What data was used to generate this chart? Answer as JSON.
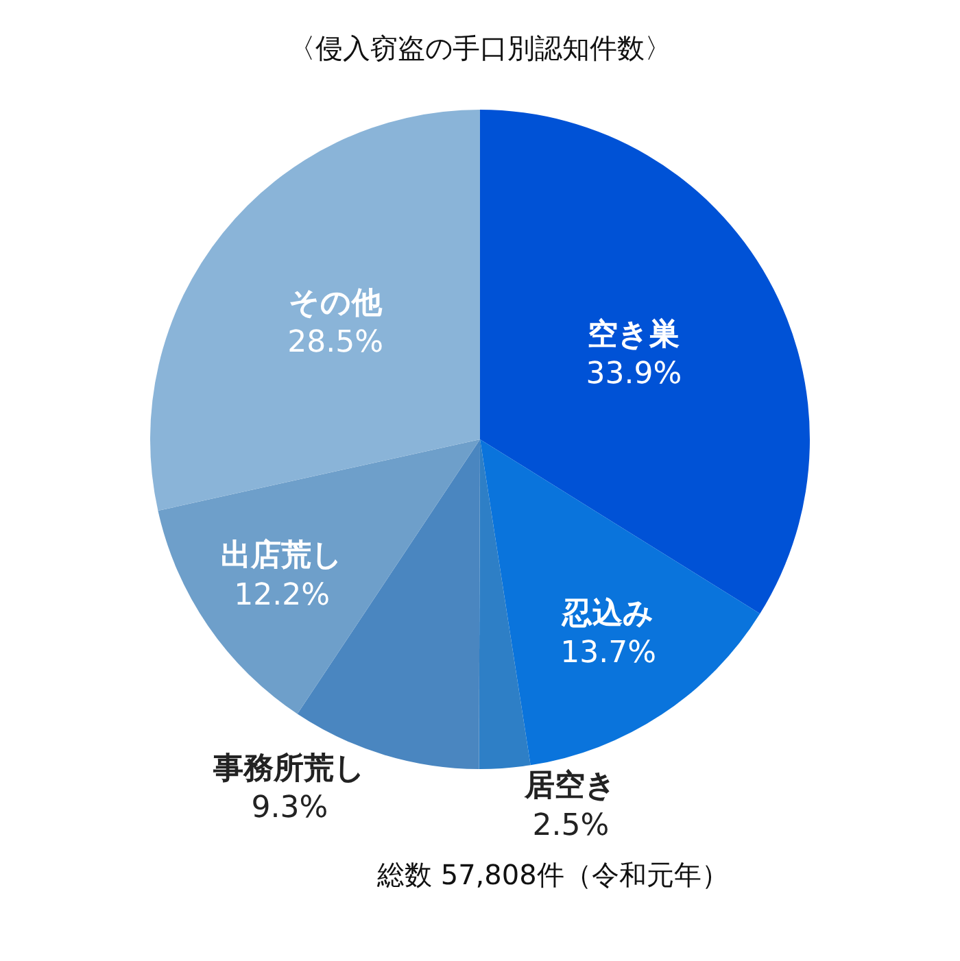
{
  "chart_data": {
    "type": "pie",
    "title": "〈侵入窃盗の手口別認知件数〉",
    "categories": [
      "空き巣",
      "忍込み",
      "居空き",
      "事務所荒し",
      "出店荒し",
      "その他"
    ],
    "values": [
      33.9,
      13.7,
      2.5,
      9.3,
      12.2,
      28.5
    ],
    "value_labels": [
      "33.9%",
      "13.7%",
      "2.5%",
      "9.3%",
      "12.2%",
      "28.5%"
    ],
    "colors": [
      "#0052d6",
      "#0a74dc",
      "#2e7fc6",
      "#4a86c0",
      "#6e9fca",
      "#8ab4d8"
    ],
    "annotations": [
      "総数 57,808件（令和元年）"
    ],
    "legend": false
  }
}
